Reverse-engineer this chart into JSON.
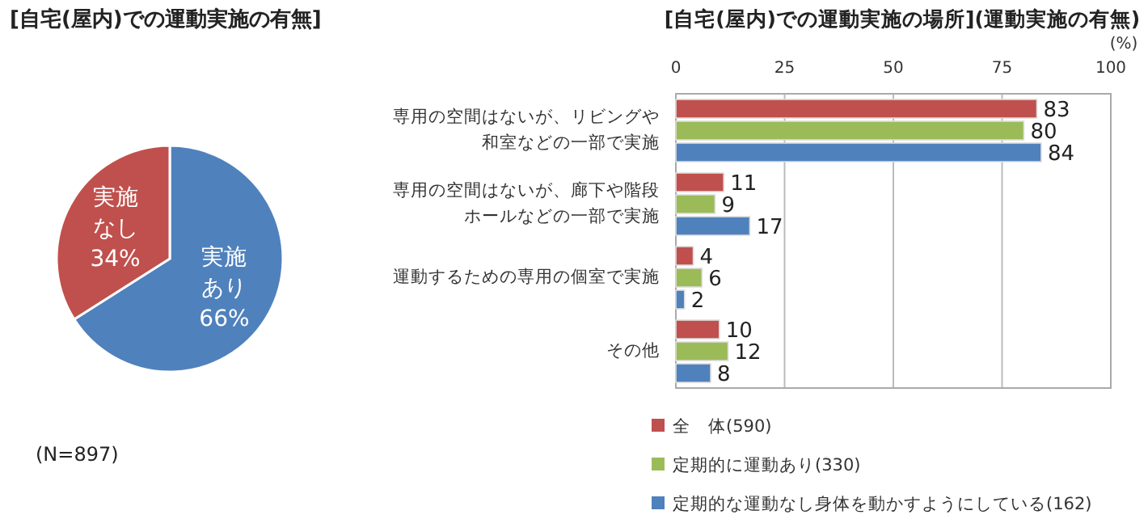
{
  "chart_data": [
    {
      "type": "pie",
      "title": "[自宅(屋内)での運動実施の有無]",
      "categories": [
        "実施あり",
        "実施なし"
      ],
      "values": [
        66,
        34
      ],
      "value_labels": [
        "66%",
        "34%"
      ],
      "colors": [
        "#4f81bd",
        "#c0504d"
      ],
      "annotations": [
        "(N=897)"
      ]
    },
    {
      "type": "bar",
      "orientation": "horizontal",
      "title": "[自宅(屋内)での運動実施の場所](運動実施の有無)",
      "xlabel": "(%)",
      "categories": [
        "専用の空間はないが、リビングや和室などの一部で実施",
        "専用の空間はないが、廊下や階段ホールなどの一部で実施",
        "運動するための専用の個室で実施",
        "その他"
      ],
      "xlim": [
        0,
        100
      ],
      "xticks": [
        0,
        25,
        50,
        75,
        100
      ],
      "grid": "x",
      "legend": "bottom",
      "data_labels": true,
      "series": [
        {
          "name": "全　体(590)",
          "color": "#c0504d",
          "values": [
            83,
            11,
            4,
            10
          ]
        },
        {
          "name": "定期的に運動あり(330)",
          "color": "#9bbb59",
          "values": [
            80,
            9,
            6,
            12
          ]
        },
        {
          "name": "定期的な運動なし身体を動かすようにしている(162)",
          "color": "#4f81bd",
          "values": [
            84,
            17,
            2,
            8
          ]
        }
      ]
    }
  ]
}
